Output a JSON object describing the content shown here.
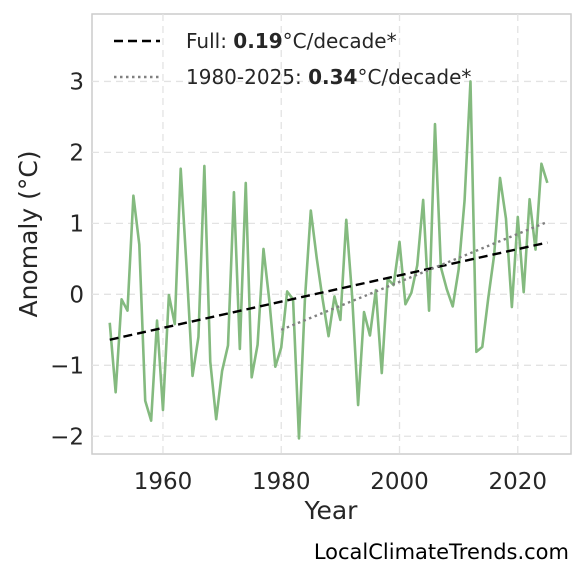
{
  "chart_data": {
    "type": "line",
    "title": "",
    "xlabel": "Year",
    "ylabel": "Anomaly (°C)",
    "xlim": [
      1948,
      2029
    ],
    "ylim": [
      -2.25,
      3.95
    ],
    "xticks": [
      1960,
      1980,
      2000,
      2020
    ],
    "yticks": [
      -2,
      -1,
      0,
      1,
      2,
      3
    ],
    "xtick_labels": [
      "1960",
      "1980",
      "2000",
      "2020"
    ],
    "ytick_labels": [
      "−2",
      "−1",
      "0",
      "1",
      "2",
      "3"
    ],
    "grid": true,
    "legend_position": "top-left",
    "series": [
      {
        "color": "#84ba7f",
        "style": "solid",
        "x": [
          1951,
          1952,
          1953,
          1954,
          1955,
          1956,
          1957,
          1958,
          1959,
          1960,
          1961,
          1962,
          1963,
          1964,
          1965,
          1966,
          1967,
          1968,
          1969,
          1970,
          1971,
          1972,
          1973,
          1974,
          1975,
          1976,
          1977,
          1978,
          1979,
          1980,
          1981,
          1982,
          1983,
          1984,
          1985,
          1986,
          1987,
          1988,
          1989,
          1990,
          1991,
          1992,
          1993,
          1994,
          1995,
          1996,
          1997,
          1998,
          1999,
          2000,
          2001,
          2002,
          2003,
          2004,
          2005,
          2006,
          2007,
          2008,
          2009,
          2010,
          2011,
          2012,
          2013,
          2014,
          2015,
          2016,
          2017,
          2018,
          2019,
          2020,
          2021,
          2022,
          2023,
          2024,
          2025
        ],
        "y": [
          -0.4,
          -1.38,
          -0.07,
          -0.23,
          1.39,
          0.7,
          -1.5,
          -1.78,
          -0.37,
          -1.63,
          -0.01,
          -0.42,
          1.77,
          0.37,
          -1.15,
          -0.6,
          1.81,
          -0.95,
          -1.76,
          -1.08,
          -0.72,
          1.44,
          -0.77,
          1.57,
          -1.17,
          -0.71,
          0.64,
          -0.1,
          -1.02,
          -0.75,
          0.04,
          -0.07,
          -2.03,
          -0.08,
          1.18,
          0.51,
          -0.07,
          -0.59,
          -0.03,
          -0.36,
          1.05,
          -0.04,
          -1.56,
          -0.25,
          -0.58,
          0.06,
          -1.11,
          0.22,
          0.13,
          0.74,
          -0.14,
          0.02,
          0.41,
          1.33,
          -0.23,
          2.4,
          0.38,
          0.07,
          -0.17,
          0.35,
          1.32,
          3.0,
          -0.81,
          -0.74,
          -0.06,
          0.55,
          1.64,
          1.07,
          -0.18,
          1.09,
          0.03,
          1.34,
          0.63,
          1.84,
          1.57
        ]
      },
      {
        "name": "Full",
        "color": "#000000",
        "style": "dashed",
        "x": [
          1951,
          2025
        ],
        "y": [
          -0.64,
          0.73
        ]
      },
      {
        "name": "1980-2025",
        "color": "#808080",
        "style": "dotted",
        "x": [
          1980,
          2025
        ],
        "y": [
          -0.5,
          1.02
        ]
      }
    ],
    "legend": [
      {
        "prefix": "Full: ",
        "value": "0.19",
        "suffix": "°C/decade*",
        "color": "#000000",
        "style": "dashed"
      },
      {
        "prefix": "1980-2025: ",
        "value": "0.34",
        "suffix": "°C/decade*",
        "color": "#808080",
        "style": "dotted"
      }
    ]
  },
  "credit": "LocalClimateTrends.com"
}
